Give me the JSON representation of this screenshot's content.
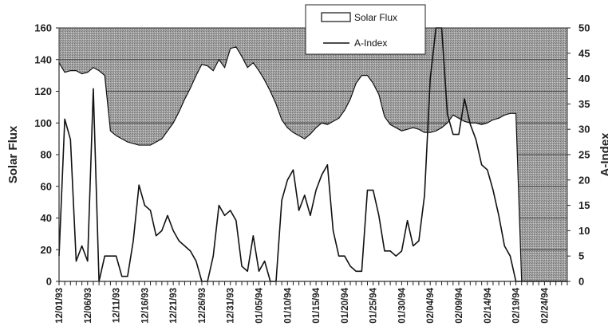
{
  "chart_data": {
    "type": "area",
    "title": "",
    "ylabel": "Solar Flux",
    "y2label": "A-Index",
    "ylim": [
      0,
      160
    ],
    "y2lim": [
      0,
      50
    ],
    "yticks": [
      "0",
      "20",
      "40",
      "60",
      "80",
      "100",
      "120",
      "140",
      "160"
    ],
    "y2ticks": [
      "0",
      "5",
      "10",
      "15",
      "20",
      "25",
      "30",
      "35",
      "40",
      "45",
      "50"
    ],
    "xtick_labels": [
      "12/01/93",
      "12/06/93",
      "12/11/93",
      "12/16/93",
      "12/21/93",
      "12/26/93",
      "12/31/93",
      "01/05/94",
      "01/10/94",
      "01/15/94",
      "01/20/94",
      "01/25/94",
      "01/30/94",
      "02/04/94",
      "02/09/94",
      "02/14/94",
      "02/19/94",
      "02/24/94"
    ],
    "x_days": 90,
    "grid": true,
    "legend_position": "top",
    "series": [
      {
        "name": "Solar Flux",
        "axis": "left",
        "style": "area",
        "values": [
          138,
          132,
          133,
          133,
          131,
          132,
          135,
          133,
          130,
          95,
          92,
          90,
          88,
          87,
          86,
          86,
          86,
          88,
          90,
          95,
          100,
          107,
          115,
          122,
          130,
          137,
          136,
          133,
          140,
          135,
          147,
          148,
          142,
          135,
          138,
          133,
          127,
          120,
          112,
          102,
          97,
          94,
          92,
          90,
          93,
          97,
          100,
          99,
          101,
          103,
          108,
          115,
          125,
          130,
          130,
          125,
          118,
          104,
          99,
          97,
          95,
          96,
          97,
          96,
          94,
          94,
          95,
          97,
          100,
          105,
          103,
          101,
          100,
          100,
          99,
          100,
          102,
          103,
          105,
          106,
          106,
          0,
          0,
          0,
          0,
          0,
          0,
          0,
          0,
          0
        ]
      },
      {
        "name": "A-Index",
        "axis": "right",
        "style": "line",
        "values": [
          5,
          32,
          28,
          4,
          7,
          4,
          38,
          0,
          5,
          5,
          5,
          1,
          1,
          8,
          19,
          15,
          14,
          9,
          10,
          13,
          10,
          8,
          7,
          6,
          4,
          0,
          0,
          5,
          15,
          13,
          14,
          12,
          3,
          2,
          9,
          2,
          4,
          0,
          0,
          16,
          20,
          22,
          14,
          17,
          13,
          18,
          21,
          23,
          10,
          5,
          5,
          3,
          2,
          2,
          18,
          18,
          13,
          6,
          6,
          5,
          6,
          12,
          7,
          8,
          17,
          40,
          50,
          50,
          33,
          29,
          29,
          36,
          31,
          28,
          23,
          22,
          18,
          13,
          7,
          5,
          0,
          0,
          0,
          0,
          0,
          0,
          0,
          0,
          0,
          0
        ]
      }
    ],
    "colors": {
      "plot_fill": "#9d9d9d",
      "gridline": "#444444",
      "area_fill": "#ffffff",
      "line": "#111111"
    }
  },
  "legend": {
    "items": [
      {
        "label": "Solar Flux",
        "icon": "white-box-swatch"
      },
      {
        "label": "A-Index",
        "icon": "line-swatch"
      }
    ]
  }
}
